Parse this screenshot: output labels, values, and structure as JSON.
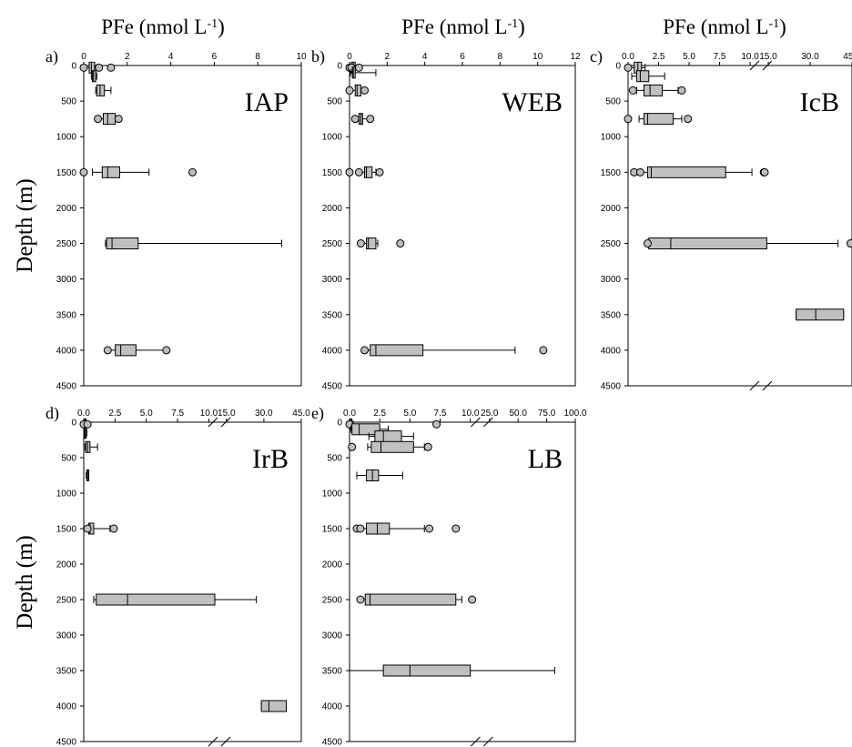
{
  "figure": {
    "top_title": "PFe (nmol L",
    "top_title_sup": "-1",
    "top_title_close": ")",
    "ylabel": "Depth (m)"
  },
  "colors": {
    "box_fill": "#c0c0c0",
    "outlier_fill": "#bdbdbd",
    "stroke": "#000000"
  },
  "chart_data": [
    {
      "letter": "a)",
      "region": "IAP",
      "type": "box",
      "scale": "linear",
      "x_ticks": [
        "0",
        "2",
        "4",
        "6",
        "8",
        "10"
      ],
      "xlim": [
        0,
        10
      ],
      "ylim": [
        0,
        4500
      ],
      "y_ticks": [
        "0",
        "500",
        "1000",
        "1500",
        "2000",
        "2500",
        "3000",
        "3500",
        "4000",
        "4500"
      ],
      "boxes": [
        {
          "depth": 30,
          "wl": 0.0,
          "q1": 0.25,
          "med": 0.35,
          "q3": 0.5,
          "wh": 0.6,
          "outliers": [
            0.0,
            0.7,
            1.25
          ]
        },
        {
          "depth": 150,
          "wl": 0.35,
          "q1": 0.4,
          "med": 0.45,
          "q3": 0.55,
          "wh": 0.6,
          "outliers": []
        },
        {
          "depth": 350,
          "wl": 0.55,
          "q1": 0.6,
          "med": 0.75,
          "q3": 0.95,
          "wh": 1.25,
          "outliers": []
        },
        {
          "depth": 750,
          "wl": 0.7,
          "q1": 0.9,
          "med": 1.1,
          "q3": 1.45,
          "wh": 1.55,
          "outliers": [
            0.65,
            1.6
          ]
        },
        {
          "depth": 1500,
          "wl": 0.4,
          "q1": 0.85,
          "med": 1.1,
          "q3": 1.65,
          "wh": 3.0,
          "outliers": [
            0.0,
            5.0
          ]
        },
        {
          "depth": 2500,
          "wl": 1.0,
          "q1": 1.05,
          "med": 1.3,
          "q3": 2.5,
          "wh": 9.1,
          "outliers": []
        },
        {
          "depth": 4000,
          "wl": 1.05,
          "q1": 1.45,
          "med": 1.7,
          "q3": 2.4,
          "wh": 3.8,
          "outliers": [
            1.1,
            3.8
          ]
        }
      ]
    },
    {
      "letter": "b)",
      "region": "WEB",
      "type": "box",
      "scale": "linear",
      "x_ticks": [
        "0",
        "2",
        "4",
        "6",
        "8",
        "10",
        "12"
      ],
      "xlim": [
        0,
        12
      ],
      "ylim": [
        0,
        4500
      ],
      "y_ticks": [
        "0",
        "500",
        "1000",
        "1500",
        "2000",
        "2500",
        "3000",
        "3500",
        "4000",
        "4500"
      ],
      "boxes": [
        {
          "depth": 30,
          "wl": 0.0,
          "q1": 0.1,
          "med": 0.2,
          "q3": 0.3,
          "wh": 0.4,
          "outliers": [
            0.0,
            0.1,
            0.5
          ]
        },
        {
          "depth": 100,
          "wl": 0.05,
          "q1": 0.15,
          "med": 0.2,
          "q3": 0.3,
          "wh": 1.4,
          "outliers": []
        },
        {
          "depth": 350,
          "wl": 0.1,
          "q1": 0.3,
          "med": 0.4,
          "q3": 0.6,
          "wh": 0.7,
          "outliers": [
            0.0,
            0.8
          ]
        },
        {
          "depth": 750,
          "wl": 0.3,
          "q1": 0.5,
          "med": 0.6,
          "q3": 0.7,
          "wh": 1.0,
          "outliers": [
            0.3,
            1.1
          ]
        },
        {
          "depth": 1500,
          "wl": 0.5,
          "q1": 0.8,
          "med": 0.9,
          "q3": 1.2,
          "wh": 1.4,
          "outliers": [
            0.0,
            0.5,
            1.6
          ]
        },
        {
          "depth": 2500,
          "wl": 0.6,
          "q1": 0.9,
          "med": 1.0,
          "q3": 1.4,
          "wh": 1.5,
          "outliers": [
            0.6,
            2.7
          ]
        },
        {
          "depth": 4000,
          "wl": 0.8,
          "q1": 1.1,
          "med": 1.4,
          "q3": 3.9,
          "wh": 8.8,
          "outliers": [
            0.8,
            10.3
          ]
        }
      ]
    },
    {
      "letter": "c)",
      "region": "IcB",
      "type": "box",
      "scale": "broken",
      "x_ticks": [
        "0.0",
        "2.5",
        "5.0",
        "7.5",
        "10.0",
        "15.0",
        "30.0",
        "45.0"
      ],
      "xlim": [
        0,
        45
      ],
      "ylim": [
        0,
        4500
      ],
      "y_ticks": [
        "0",
        "500",
        "1000",
        "1500",
        "2000",
        "2500",
        "3000",
        "3500",
        "4000",
        "4500"
      ],
      "boxes": [
        {
          "depth": 30,
          "wl": 0.0,
          "q1": 0.5,
          "med": 0.8,
          "q3": 1.1,
          "wh": 1.4,
          "outliers": [
            0.0
          ]
        },
        {
          "depth": 150,
          "wl": 0.3,
          "q1": 0.7,
          "med": 1.0,
          "q3": 1.7,
          "wh": 3.0,
          "outliers": []
        },
        {
          "depth": 350,
          "wl": 0.7,
          "q1": 1.3,
          "med": 1.8,
          "q3": 2.8,
          "wh": 4.1,
          "outliers": [
            0.4,
            4.4
          ]
        },
        {
          "depth": 750,
          "wl": 0.9,
          "q1": 1.3,
          "med": 1.6,
          "q3": 3.7,
          "wh": 4.4,
          "outliers": [
            0.0,
            4.9
          ]
        },
        {
          "depth": 1500,
          "wl": 1.1,
          "q1": 1.6,
          "med": 1.9,
          "q3": 8.0,
          "wh": 10.5,
          "outliers": [
            0.5,
            1.0,
            13.8,
            14.0
          ]
        },
        {
          "depth": 2500,
          "wl": 1.6,
          "q1": 1.7,
          "med": 3.5,
          "q3": 14.6,
          "wh": 40.0,
          "outliers": [
            1.6,
            44.5
          ]
        },
        {
          "depth": 3500,
          "wl": 25.0,
          "q1": 25.0,
          "med": 32.0,
          "q3": 42.0,
          "wh": 42.0,
          "outliers": []
        }
      ]
    },
    {
      "letter": "d)",
      "region": "IrB",
      "type": "box",
      "scale": "broken",
      "x_ticks": [
        "0.0",
        "2.5",
        "5.0",
        "7.5",
        "10.0",
        "15.0",
        "30.0",
        "45.0"
      ],
      "xlim": [
        0,
        45
      ],
      "ylim": [
        0,
        4500
      ],
      "y_ticks": [
        "0",
        "500",
        "1000",
        "1500",
        "2000",
        "2500",
        "3000",
        "3500",
        "4000",
        "4500"
      ],
      "boxes": [
        {
          "depth": 30,
          "wl": 0.0,
          "q1": 0.05,
          "med": 0.1,
          "q3": 0.15,
          "wh": 0.3,
          "outliers": [
            0.0,
            0.3
          ]
        },
        {
          "depth": 150,
          "wl": 0.0,
          "q1": 0.05,
          "med": 0.1,
          "q3": 0.2,
          "wh": 0.25,
          "outliers": []
        },
        {
          "depth": 350,
          "wl": 0.1,
          "q1": 0.15,
          "med": 0.3,
          "q3": 0.5,
          "wh": 1.1,
          "outliers": []
        },
        {
          "depth": 750,
          "wl": 0.2,
          "q1": 0.25,
          "med": 0.3,
          "q3": 0.35,
          "wh": 0.4,
          "outliers": []
        },
        {
          "depth": 1500,
          "wl": 0.3,
          "q1": 0.4,
          "med": 0.5,
          "q3": 0.8,
          "wh": 2.1,
          "outliers": [
            0.3,
            2.4
          ]
        },
        {
          "depth": 2500,
          "wl": 0.8,
          "q1": 1.0,
          "med": 3.5,
          "q3": 11.7,
          "wh": 27.0,
          "outliers": []
        },
        {
          "depth": 4000,
          "wl": 29.0,
          "q1": 29.0,
          "med": 32.0,
          "q3": 39.0,
          "wh": 39.0,
          "outliers": []
        }
      ]
    },
    {
      "letter": "e)",
      "region": "LB",
      "type": "box",
      "scale": "broken",
      "x_ticks": [
        "0.0",
        "2.5",
        "5.0",
        "7.5",
        "10.0",
        "25.0",
        "50.0",
        "75.0",
        "100.0"
      ],
      "xlim": [
        0,
        100
      ],
      "ylim": [
        0,
        4500
      ],
      "y_ticks": [
        "0",
        "500",
        "1000",
        "1500",
        "2000",
        "2500",
        "3000",
        "3500",
        "4000",
        "4500"
      ],
      "boxes": [
        {
          "depth": 30,
          "wl": 0.0,
          "q1": 0.05,
          "med": 0.1,
          "q3": 0.2,
          "wh": 0.3,
          "outliers": [
            0.0,
            7.2
          ]
        },
        {
          "depth": 100,
          "wl": 0.1,
          "q1": 0.2,
          "med": 0.8,
          "q3": 2.5,
          "wh": 3.2,
          "outliers": []
        },
        {
          "depth": 200,
          "wl": 1.6,
          "q1": 2.1,
          "med": 2.8,
          "q3": 4.3,
          "wh": 5.3,
          "outliers": []
        },
        {
          "depth": 350,
          "wl": 1.5,
          "q1": 1.8,
          "med": 2.6,
          "q3": 5.3,
          "wh": 6.2,
          "outliers": [
            0.2,
            6.5
          ]
        },
        {
          "depth": 750,
          "wl": 0.6,
          "q1": 1.4,
          "med": 1.9,
          "q3": 2.4,
          "wh": 4.4,
          "outliers": []
        },
        {
          "depth": 1500,
          "wl": 0.8,
          "q1": 1.4,
          "med": 2.3,
          "q3": 3.3,
          "wh": 6.2,
          "outliers": [
            0.6,
            0.9,
            6.6,
            8.8
          ]
        },
        {
          "depth": 2500,
          "wl": 0.9,
          "q1": 1.3,
          "med": 1.7,
          "q3": 8.8,
          "wh": 9.3,
          "outliers": [
            0.9,
            11.4
          ]
        },
        {
          "depth": 3500,
          "wl": 0.0,
          "q1": 2.8,
          "med": 5.0,
          "q3": 10.0,
          "wh": 82.0,
          "outliers": []
        }
      ]
    }
  ]
}
